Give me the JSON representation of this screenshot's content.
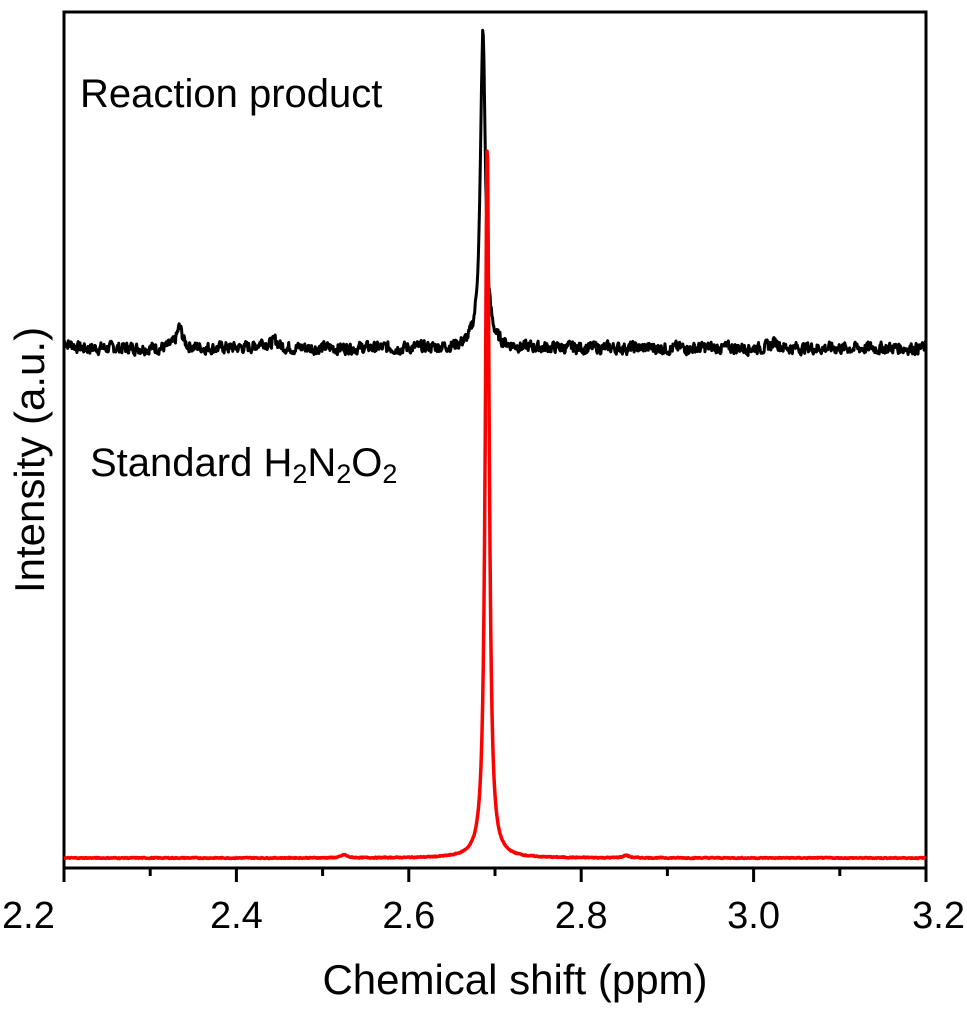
{
  "chart_data": {
    "type": "line",
    "xlabel": "Chemical shift (ppm)",
    "ylabel": "Intensity (a.u.)",
    "xlim": [
      2.2,
      3.2
    ],
    "ylim": [
      0,
      1.6
    ],
    "xticks": [
      "2.2",
      "2.4",
      "2.6",
      "2.8",
      "3.0",
      "3.2"
    ],
    "xtick_values": [
      2.2,
      2.4,
      2.6,
      2.8,
      3.0,
      3.2
    ],
    "minor_xtick_values": [
      2.3,
      2.5,
      2.7,
      2.9,
      3.1
    ],
    "grid": false,
    "legend": "none",
    "series": [
      {
        "name": "Reaction product",
        "color": "#000000",
        "baseline": 1.0,
        "noise": 0.012,
        "peaks": [
          {
            "x": 2.686,
            "height": 0.62,
            "width": 0.0035
          },
          {
            "x": 2.334,
            "height": 0.04,
            "width": 0.004
          },
          {
            "x": 2.43,
            "height": 0.012,
            "width": 0.006
          },
          {
            "x": 2.445,
            "height": 0.012,
            "width": 0.005
          },
          {
            "x": 3.025,
            "height": 0.012,
            "width": 0.005
          }
        ]
      },
      {
        "name": "Standard H2N2O2",
        "label_main": "Standard H",
        "label_n": "N",
        "label_o": "O",
        "label_sub": "2",
        "color": "#ff0000",
        "baseline": 0.0,
        "noise": 0.001,
        "peaks": [
          {
            "x": 2.691,
            "height": 1.4,
            "width": 0.0028
          },
          {
            "x": 2.525,
            "height": 0.006,
            "width": 0.004
          },
          {
            "x": 2.852,
            "height": 0.005,
            "width": 0.004
          }
        ]
      }
    ]
  }
}
